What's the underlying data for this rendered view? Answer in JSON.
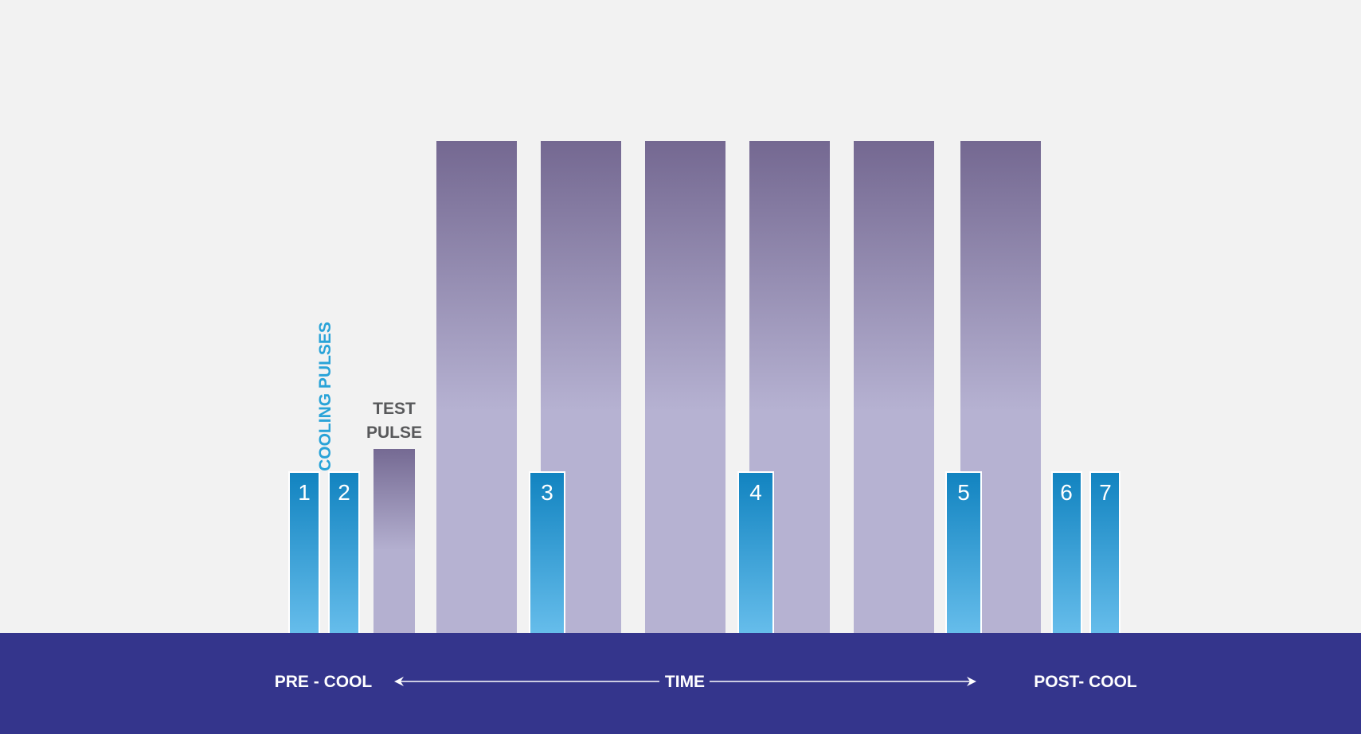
{
  "labels": {
    "cooling_pulses": "COOLING PULSES",
    "test_pulse_line1": "TEST",
    "test_pulse_line2": "PULSE",
    "pre_cool": "PRE - COOL",
    "time": "TIME",
    "post_cool": "POST- COOL"
  },
  "cooling_pulses": [
    "1",
    "2",
    "3",
    "4",
    "5",
    "6",
    "7"
  ],
  "treatment_pulse_count": 6,
  "colors": {
    "background": "#f2f2f2",
    "timeline_band": "#34358c",
    "treatment_top": "#746891",
    "treatment_bottom": "#b6b2d2",
    "cooling_top": "#1183c0",
    "cooling_bottom": "#66bdeb",
    "test_pulse_top": "#756a93",
    "test_pulse_bottom": "#b4b0d0",
    "cooling_label": "#29a3d8",
    "test_label": "#58595b",
    "text_on_band": "#ffffff"
  }
}
